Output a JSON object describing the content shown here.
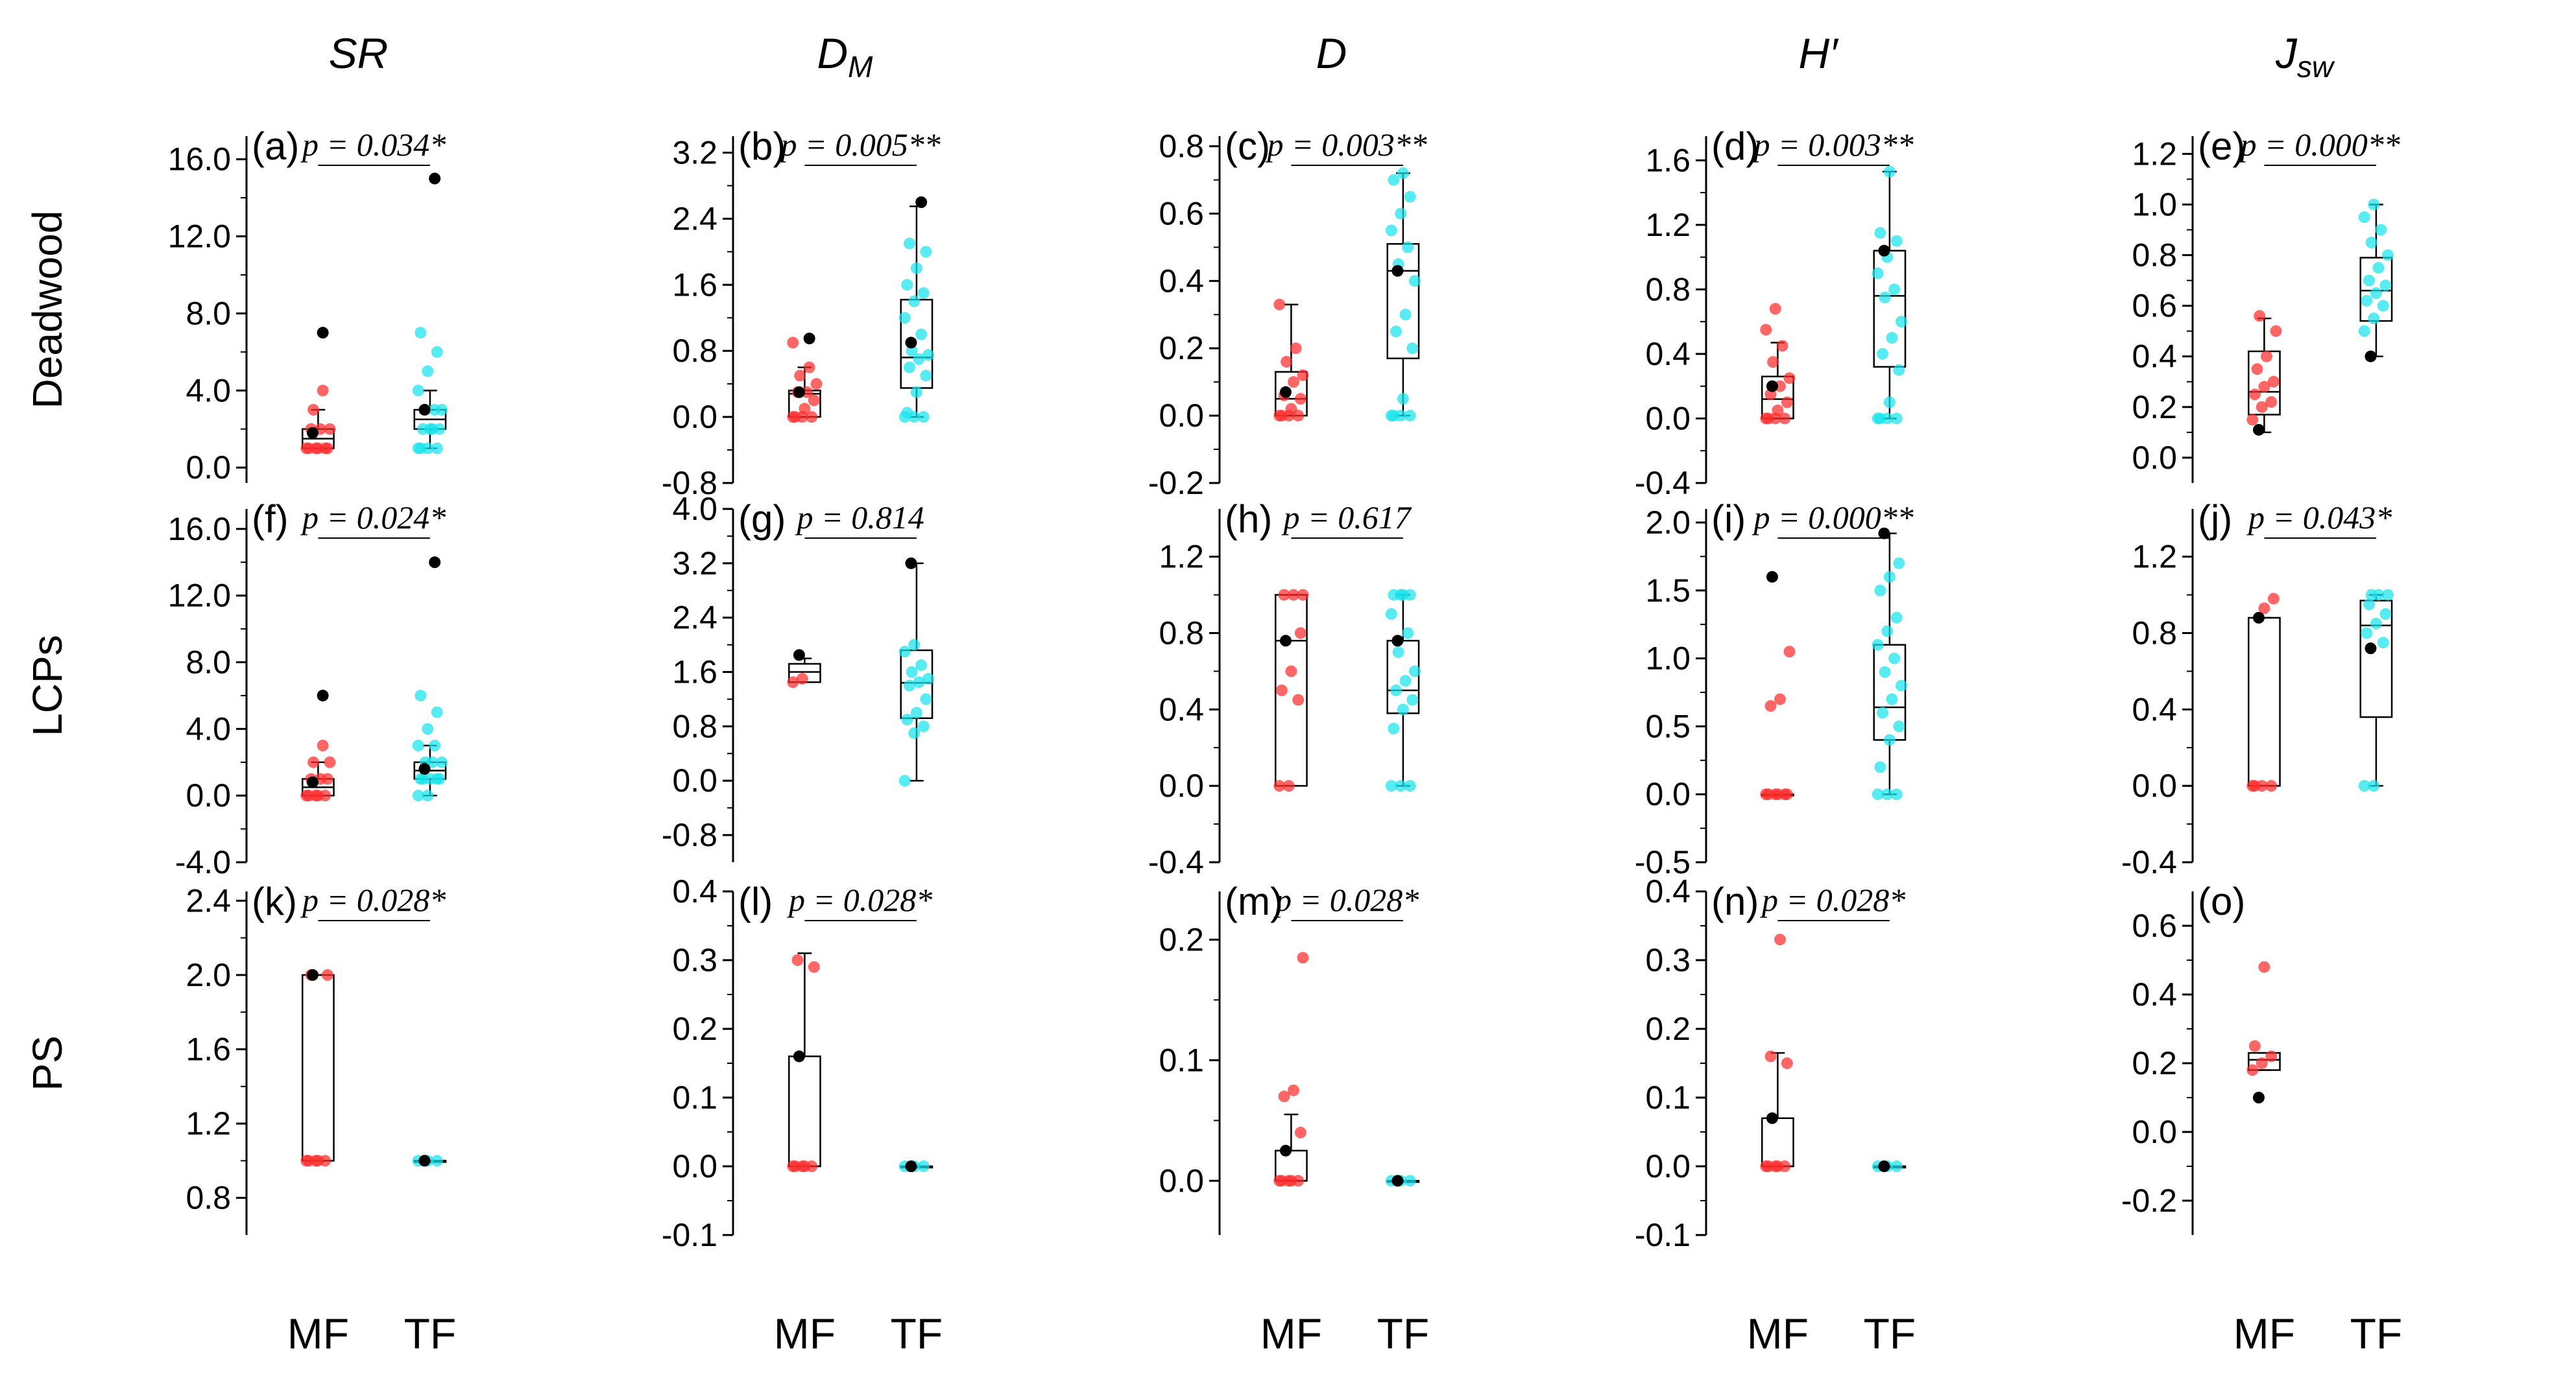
{
  "chart_data": {
    "type": "box",
    "groups": [
      "MF",
      "TF"
    ],
    "colors": {
      "MF": "#ff2d2d",
      "TF": "#18e3ec",
      "outlier": "#000000",
      "box": "#000000"
    },
    "columns": [
      {
        "title": "SR",
        "italic": true
      },
      {
        "title": "D",
        "subscript": "M",
        "italic": true
      },
      {
        "title": "D",
        "italic": true
      },
      {
        "title": "H′",
        "italic": true
      },
      {
        "title": "J",
        "subscript": "sw",
        "italic": true
      }
    ],
    "rows": [
      "Deadwood",
      "LCPs",
      "PS"
    ],
    "xlabels": [
      "MF",
      "TF"
    ],
    "panels": [
      {
        "label": "(a)",
        "p": "p = 0.034*",
        "ylim": [
          -0.8,
          17.2
        ],
        "ticks": [
          0,
          4,
          8,
          12,
          16
        ],
        "tick_labels": [
          "0.0",
          "4.0",
          "8.0",
          "12.0",
          "16.0"
        ],
        "boxes": [
          {
            "group": "MF",
            "min": 1,
            "q1": 1,
            "median": 1.5,
            "q3": 2,
            "max": 3,
            "mean": 1.8,
            "points": [
              1,
              1,
              1,
              1,
              1,
              1,
              2,
              2,
              2,
              3,
              4
            ],
            "outliers": [
              7
            ]
          },
          {
            "group": "TF",
            "min": 1,
            "q1": 2,
            "median": 2.5,
            "q3": 3,
            "max": 4,
            "mean": 3.0,
            "points": [
              1,
              1,
              1,
              1,
              2,
              2,
              2,
              2,
              3,
              3,
              3,
              4,
              5,
              6,
              7
            ],
            "outliers": [
              15
            ]
          }
        ]
      },
      {
        "label": "(b)",
        "p": "p = 0.005**",
        "ylim": [
          -0.8,
          3.4
        ],
        "ticks": [
          -0.8,
          0,
          0.8,
          1.6,
          2.4,
          3.2
        ],
        "tick_labels": [
          "-0.8",
          "0.0",
          "0.8",
          "1.6",
          "2.4",
          "3.2"
        ],
        "boxes": [
          {
            "group": "MF",
            "min": 0,
            "q1": 0,
            "median": 0.28,
            "q3": 0.32,
            "max": 0.6,
            "mean": 0.3,
            "points": [
              0,
              0,
              0,
              0,
              0.1,
              0.2,
              0.3,
              0.3,
              0.4,
              0.5,
              0.6,
              0.9
            ],
            "outliers": [
              0.95
            ]
          },
          {
            "group": "TF",
            "min": 0,
            "q1": 0.35,
            "median": 0.72,
            "q3": 1.42,
            "max": 2.55,
            "mean": 0.9,
            "points": [
              0,
              0,
              0,
              0.05,
              0.3,
              0.5,
              0.6,
              0.7,
              0.75,
              0.8,
              1.0,
              1.2,
              1.4,
              1.5,
              1.6,
              1.8,
              2.0,
              2.1
            ],
            "outliers": [
              2.6
            ]
          }
        ]
      },
      {
        "label": "(c)",
        "p": "p = 0.003**",
        "ylim": [
          -0.2,
          0.83
        ],
        "ticks": [
          -0.2,
          0,
          0.2,
          0.4,
          0.6,
          0.8
        ],
        "tick_labels": [
          "-0.2",
          "0.0",
          "0.2",
          "0.4",
          "0.6",
          "0.8"
        ],
        "boxes": [
          {
            "group": "MF",
            "min": 0,
            "q1": 0,
            "median": 0.05,
            "q3": 0.13,
            "max": 0.33,
            "mean": 0.07,
            "points": [
              0,
              0,
              0,
              0,
              0.02,
              0.05,
              0.06,
              0.1,
              0.12,
              0.16,
              0.2,
              0.33
            ],
            "outliers": []
          },
          {
            "group": "TF",
            "min": 0,
            "q1": 0.17,
            "median": 0.43,
            "q3": 0.51,
            "max": 0.72,
            "mean": 0.43,
            "points": [
              0,
              0,
              0,
              0,
              0.05,
              0.2,
              0.25,
              0.3,
              0.4,
              0.45,
              0.5,
              0.55,
              0.6,
              0.65,
              0.7,
              0.72
            ],
            "outliers": []
          }
        ]
      },
      {
        "label": "(d)",
        "p": "p = 0.003**",
        "ylim": [
          -0.4,
          1.75
        ],
        "ticks": [
          -0.4,
          0,
          0.4,
          0.8,
          1.2,
          1.6
        ],
        "tick_labels": [
          "-0.4",
          "0.0",
          "0.4",
          "0.8",
          "1.2",
          "1.6"
        ],
        "boxes": [
          {
            "group": "MF",
            "min": 0,
            "q1": 0,
            "median": 0.12,
            "q3": 0.26,
            "max": 0.47,
            "mean": 0.2,
            "points": [
              0,
              0,
              0,
              0,
              0.05,
              0.1,
              0.15,
              0.2,
              0.25,
              0.35,
              0.45,
              0.55,
              0.68
            ],
            "outliers": []
          },
          {
            "group": "TF",
            "min": 0,
            "q1": 0.32,
            "median": 0.76,
            "q3": 1.04,
            "max": 1.53,
            "mean": 1.04,
            "points": [
              0,
              0,
              0,
              0,
              0.1,
              0.3,
              0.4,
              0.5,
              0.6,
              0.75,
              0.8,
              0.9,
              1.0,
              1.1,
              1.15,
              1.53
            ],
            "outliers": []
          }
        ]
      },
      {
        "label": "(e)",
        "p": "p = 0.000**",
        "ylim": [
          -0.1,
          1.27
        ],
        "ticks": [
          0,
          0.2,
          0.4,
          0.6,
          0.8,
          1.0,
          1.2
        ],
        "tick_labels": [
          "0.0",
          "0.2",
          "0.4",
          "0.6",
          "0.8",
          "1.0",
          "1.2"
        ],
        "boxes": [
          {
            "group": "MF",
            "min": 0.1,
            "q1": 0.17,
            "median": 0.26,
            "q3": 0.42,
            "max": 0.55,
            "mean": 0.11,
            "points": [
              0.15,
              0.2,
              0.22,
              0.25,
              0.28,
              0.3,
              0.35,
              0.4,
              0.5,
              0.56
            ],
            "outliers": []
          },
          {
            "group": "TF",
            "min": 0.4,
            "q1": 0.54,
            "median": 0.66,
            "q3": 0.79,
            "max": 1.0,
            "mean": 0.4,
            "points": [
              0.5,
              0.55,
              0.6,
              0.62,
              0.65,
              0.68,
              0.7,
              0.75,
              0.8,
              0.85,
              0.9,
              0.95,
              1.0
            ],
            "outliers": []
          }
        ]
      },
      {
        "label": "(f)",
        "p": "p = 0.024*",
        "ylim": [
          -4,
          17.2
        ],
        "ticks": [
          -4,
          0,
          4,
          8,
          12,
          16
        ],
        "tick_labels": [
          "-4.0",
          "0.0",
          "4.0",
          "8.0",
          "12.0",
          "16.0"
        ],
        "boxes": [
          {
            "group": "MF",
            "min": 0,
            "q1": 0,
            "median": 0.5,
            "q3": 1,
            "max": 2,
            "mean": 0.8,
            "points": [
              0,
              0,
              0,
              0,
              0,
              1,
              1,
              1,
              2,
              2,
              3
            ],
            "outliers": [
              6
            ]
          },
          {
            "group": "TF",
            "min": 0,
            "q1": 1,
            "median": 1.5,
            "q3": 2,
            "max": 3,
            "mean": 1.6,
            "points": [
              0,
              0,
              1,
              1,
              1,
              1,
              1,
              2,
              2,
              2,
              3,
              3,
              4,
              5,
              6
            ],
            "outliers": [
              14
            ]
          }
        ]
      },
      {
        "label": "(g)",
        "p": "p = 0.814",
        "ylim": [
          -1.2,
          4.0
        ],
        "ticks": [
          -0.8,
          0,
          0.8,
          1.6,
          2.4,
          3.2,
          4.0
        ],
        "tick_labels": [
          "-0.8",
          "0.0",
          "0.8",
          "1.6",
          "2.4",
          "3.2",
          "4.0"
        ],
        "boxes": [
          {
            "group": "MF",
            "min": 1.45,
            "q1": 1.45,
            "median": 1.6,
            "q3": 1.72,
            "max": 1.8,
            "mean": 1.85,
            "points": [
              1.45,
              1.5
            ],
            "outliers": []
          },
          {
            "group": "TF",
            "min": 0,
            "q1": 0.92,
            "median": 1.44,
            "q3": 1.92,
            "max": 3.2,
            "mean": 3.2,
            "points": [
              0,
              0.7,
              0.8,
              0.9,
              1.0,
              1.2,
              1.4,
              1.45,
              1.5,
              1.6,
              1.7,
              1.9,
              2.0
            ],
            "outliers": []
          }
        ]
      },
      {
        "label": "(h)",
        "p": "p = 0.617",
        "ylim": [
          -0.4,
          1.45
        ],
        "ticks": [
          -0.4,
          0,
          0.4,
          0.8,
          1.2
        ],
        "tick_labels": [
          "-0.4",
          "0.0",
          "0.4",
          "0.8",
          "1.2"
        ],
        "boxes": [
          {
            "group": "MF",
            "min": 0,
            "q1": 0,
            "median": 0.76,
            "q3": 1.0,
            "max": 1.0,
            "mean": 0.76,
            "points": [
              0,
              0,
              0.45,
              0.5,
              0.6,
              0.8,
              1.0,
              1.0,
              1.0
            ],
            "outliers": []
          },
          {
            "group": "TF",
            "min": 0,
            "q1": 0.38,
            "median": 0.5,
            "q3": 0.76,
            "max": 1.0,
            "mean": 0.76,
            "points": [
              0,
              0,
              0,
              0.3,
              0.4,
              0.45,
              0.5,
              0.55,
              0.6,
              0.7,
              0.8,
              0.9,
              1.0,
              1.0,
              1.0,
              1.0
            ],
            "outliers": []
          }
        ]
      },
      {
        "label": "(i)",
        "p": "p = 0.000**",
        "ylim": [
          -0.5,
          2.1
        ],
        "ticks": [
          -0.5,
          0,
          0.5,
          1.0,
          1.5,
          2.0
        ],
        "tick_labels": [
          "-0.5",
          "0.0",
          "0.5",
          "1.0",
          "1.5",
          "2.0"
        ],
        "boxes": [
          {
            "group": "MF",
            "min": 0,
            "q1": 0,
            "median": 0,
            "q3": 0,
            "max": 0,
            "mean": 1.6,
            "points": [
              0,
              0,
              0,
              0,
              0,
              0,
              0.65,
              0.7,
              1.05
            ],
            "outliers": []
          },
          {
            "group": "TF",
            "min": 0,
            "q1": 0.4,
            "median": 0.64,
            "q3": 1.1,
            "max": 1.92,
            "mean": 1.92,
            "points": [
              0,
              0,
              0,
              0.2,
              0.4,
              0.5,
              0.6,
              0.7,
              0.8,
              0.9,
              1.0,
              1.1,
              1.2,
              1.3,
              1.5,
              1.6,
              1.7
            ],
            "outliers": []
          }
        ]
      },
      {
        "label": "(j)",
        "p": "p = 0.043*",
        "ylim": [
          -0.4,
          1.45
        ],
        "ticks": [
          -0.4,
          0,
          0.4,
          0.8,
          1.2
        ],
        "tick_labels": [
          "-0.4",
          "0.0",
          "0.4",
          "0.8",
          "1.2"
        ],
        "boxes": [
          {
            "group": "MF",
            "min": 0,
            "q1": 0,
            "median": 0,
            "q3": 0.88,
            "max": 0.88,
            "mean": 0.88,
            "points": [
              0,
              0,
              0,
              0,
              0.93,
              0.98
            ],
            "outliers": []
          },
          {
            "group": "TF",
            "min": 0,
            "q1": 0.36,
            "median": 0.84,
            "q3": 0.97,
            "max": 1.0,
            "mean": 0.72,
            "points": [
              0,
              0,
              0.75,
              0.8,
              0.85,
              0.9,
              0.95,
              1.0,
              1.0,
              1.0
            ],
            "outliers": []
          }
        ]
      },
      {
        "label": "(k)",
        "p": "p = 0.028*",
        "ylim": [
          0.6,
          2.45
        ],
        "ticks": [
          0.8,
          1.2,
          1.6,
          2.0,
          2.4
        ],
        "tick_labels": [
          "0.8",
          "1.2",
          "1.6",
          "2.0",
          "2.4"
        ],
        "boxes": [
          {
            "group": "MF",
            "min": 1.0,
            "q1": 1.0,
            "median": 1.0,
            "q3": 2.0,
            "max": 2.0,
            "mean": 2.0,
            "points": [
              1,
              1,
              1,
              1,
              1,
              2,
              2
            ],
            "outliers": []
          },
          {
            "group": "TF",
            "min": 1.0,
            "q1": 1.0,
            "median": 1.0,
            "q3": 1.0,
            "max": 1.0,
            "mean": 1.0,
            "points": [
              1,
              1,
              1
            ],
            "outliers": []
          }
        ]
      },
      {
        "label": "(l)",
        "p": "p = 0.028*",
        "ylim": [
          -0.1,
          0.4
        ],
        "ticks": [
          -0.1,
          0,
          0.1,
          0.2,
          0.3,
          0.4
        ],
        "tick_labels": [
          "-0.1",
          "0.0",
          "0.1",
          "0.2",
          "0.3",
          "0.4"
        ],
        "boxes": [
          {
            "group": "MF",
            "min": 0,
            "q1": 0,
            "median": 0,
            "q3": 0.16,
            "max": 0.31,
            "mean": 0.16,
            "points": [
              0,
              0,
              0,
              0,
              0,
              0.29,
              0.3
            ],
            "outliers": []
          },
          {
            "group": "TF",
            "min": 0,
            "q1": 0,
            "median": 0,
            "q3": 0,
            "max": 0,
            "mean": 0,
            "points": [
              0,
              0,
              0
            ],
            "outliers": []
          }
        ]
      },
      {
        "label": "(m)",
        "p": "p = 0.028*",
        "ylim": [
          -0.045,
          0.24
        ],
        "ticks": [
          0,
          0.1,
          0.2
        ],
        "tick_labels": [
          "0.0",
          "0.1",
          "0.2"
        ],
        "boxes": [
          {
            "group": "MF",
            "min": 0,
            "q1": 0,
            "median": 0,
            "q3": 0.025,
            "max": 0.055,
            "mean": 0.025,
            "points": [
              0,
              0,
              0,
              0,
              0,
              0.04,
              0.07,
              0.075,
              0.185
            ],
            "outliers": []
          },
          {
            "group": "TF",
            "min": 0,
            "q1": 0,
            "median": 0,
            "q3": 0,
            "max": 0,
            "mean": 0,
            "points": [
              0,
              0,
              0
            ],
            "outliers": []
          }
        ]
      },
      {
        "label": "(n)",
        "p": "p = 0.028*",
        "ylim": [
          -0.1,
          0.4
        ],
        "ticks": [
          -0.1,
          0,
          0.1,
          0.2,
          0.3,
          0.4
        ],
        "tick_labels": [
          "-0.1",
          "0.0",
          "0.1",
          "0.2",
          "0.3",
          "0.4"
        ],
        "boxes": [
          {
            "group": "MF",
            "min": 0,
            "q1": 0,
            "median": 0,
            "q3": 0.07,
            "max": 0.165,
            "mean": 0.07,
            "points": [
              0,
              0,
              0,
              0,
              0,
              0.15,
              0.16,
              0.33
            ],
            "outliers": []
          },
          {
            "group": "TF",
            "min": 0,
            "q1": 0,
            "median": 0,
            "q3": 0,
            "max": 0,
            "mean": 0,
            "points": [
              0,
              0,
              0
            ],
            "outliers": []
          }
        ]
      },
      {
        "label": "(o)",
        "p": "",
        "ylim": [
          -0.3,
          0.7
        ],
        "ticks": [
          -0.2,
          0,
          0.2,
          0.4,
          0.6
        ],
        "tick_labels": [
          "-0.2",
          "0.0",
          "0.2",
          "0.4",
          "0.6"
        ],
        "boxes": [
          {
            "group": "MF",
            "min": 0.18,
            "q1": 0.18,
            "median": 0.21,
            "q3": 0.23,
            "max": 0.23,
            "mean": 0.1,
            "points": [
              0.18,
              0.2,
              0.22,
              0.25,
              0.48
            ],
            "outliers": []
          }
        ]
      }
    ]
  }
}
